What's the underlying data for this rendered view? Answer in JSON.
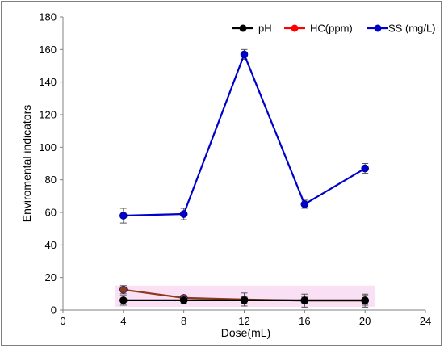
{
  "chart_data": {
    "type": "line",
    "title": "",
    "xlabel": "Dose(mL)",
    "ylabel": "Enviromental indicators",
    "xlim": [
      0,
      24
    ],
    "ylim": [
      0,
      180
    ],
    "xticks": [
      0,
      4,
      8,
      12,
      16,
      20,
      24
    ],
    "yticks": [
      0,
      20,
      40,
      60,
      80,
      100,
      120,
      140,
      160,
      180
    ],
    "grid": false,
    "legend_position": "top-right",
    "x": [
      4,
      8,
      12,
      16,
      20
    ],
    "series": [
      {
        "name": "pH",
        "color": "#000000",
        "values": [
          6,
          6,
          6,
          6,
          6
        ],
        "errors": [
          3,
          2,
          2,
          2,
          3
        ]
      },
      {
        "name": "HC(ppm)",
        "color": "#ff0000",
        "line_color": "#8b3a1a",
        "values": [
          12.5,
          7.5,
          6.5,
          5.8,
          5.8
        ],
        "errors": [
          2.5,
          1.5,
          4,
          4,
          4
        ]
      },
      {
        "name": "SS (mg/L)",
        "color": "#0000cc",
        "values": [
          58,
          59,
          157,
          65,
          87
        ],
        "errors": [
          4.5,
          3.5,
          3,
          2.5,
          3
        ]
      }
    ]
  }
}
